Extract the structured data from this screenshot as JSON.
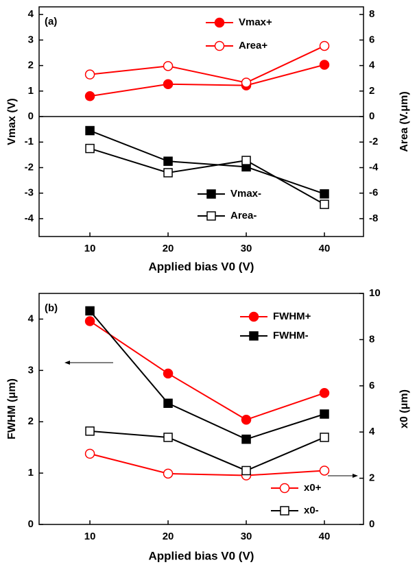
{
  "chart_data": [
    {
      "type": "line",
      "panel_label": "(a)",
      "xlabel": "Applied bias V0 (V)",
      "ylabel": "Vmax (V)",
      "y2label": "Area (V.μm)",
      "x": [
        10,
        20,
        30,
        40
      ],
      "xlim": [
        3.5,
        45
      ],
      "xticks": [
        10,
        20,
        30,
        40
      ],
      "ylim": [
        -4.7,
        4.3
      ],
      "yticks": [
        -4,
        -3,
        -2,
        -1,
        0,
        1,
        2,
        3,
        4
      ],
      "y2lim": [
        -9.4,
        8.6
      ],
      "y2ticks": [
        -8,
        -6,
        -4,
        -2,
        0,
        2,
        4,
        6,
        8
      ],
      "zero_line": true,
      "series": [
        {
          "name": "Vmax+",
          "color": "#ff0000",
          "marker": "circle",
          "filled": true,
          "values": [
            0.8,
            1.27,
            1.22,
            2.03
          ]
        },
        {
          "name": "Area+",
          "color": "#ff0000",
          "marker": "circle",
          "filled": false,
          "axis": "y2",
          "values": [
            3.3,
            3.96,
            2.66,
            5.54
          ]
        },
        {
          "name": "Vmax-",
          "color": "#000000",
          "marker": "square",
          "filled": true,
          "values": [
            -0.55,
            -1.75,
            -1.97,
            -3.03
          ]
        },
        {
          "name": "Area-",
          "color": "#000000",
          "marker": "square",
          "filled": false,
          "axis": "y2",
          "values": [
            -2.5,
            -4.4,
            -3.44,
            -6.88
          ]
        }
      ]
    },
    {
      "type": "line",
      "panel_label": "(b)",
      "xlabel": "Applied bias V0 (V)",
      "ylabel": "FWHM (μm)",
      "y2label": "x0 (μm)",
      "x": [
        10,
        20,
        30,
        40
      ],
      "xlim": [
        3.5,
        45
      ],
      "xticks": [
        10,
        20,
        30,
        40
      ],
      "ylim": [
        0,
        4.5
      ],
      "yticks": [
        0,
        1,
        2,
        3,
        4
      ],
      "y2lim": [
        0,
        10
      ],
      "y2ticks": [
        0,
        2,
        4,
        6,
        8,
        10
      ],
      "zero_line": false,
      "series": [
        {
          "name": "FWHM+",
          "color": "#ff0000",
          "marker": "circle",
          "filled": true,
          "values": [
            3.96,
            2.94,
            2.04,
            2.56
          ]
        },
        {
          "name": "FWHM-",
          "color": "#000000",
          "marker": "square",
          "filled": true,
          "values": [
            4.16,
            2.36,
            1.66,
            2.15
          ]
        },
        {
          "name": "x0+",
          "color": "#ff0000",
          "marker": "circle",
          "filled": false,
          "axis": "y2",
          "values": [
            3.06,
            2.2,
            2.12,
            2.33
          ]
        },
        {
          "name": "x0-",
          "color": "#000000",
          "marker": "square",
          "filled": false,
          "axis": "y2",
          "values": [
            4.04,
            3.77,
            2.33,
            3.77
          ]
        }
      ]
    }
  ]
}
